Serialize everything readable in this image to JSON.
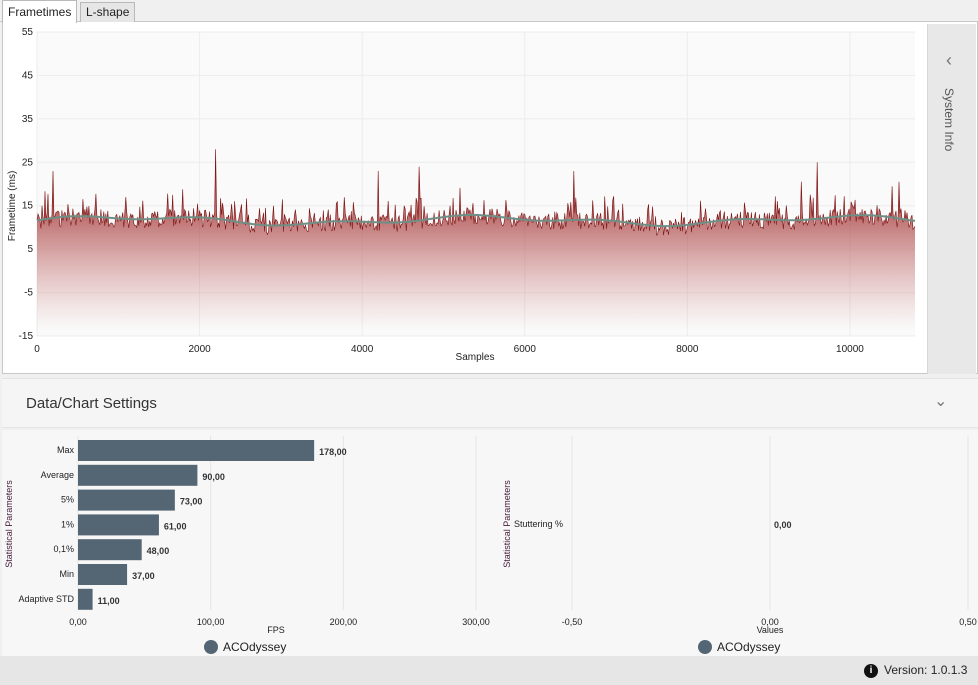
{
  "tabs": [
    {
      "label": "Frametimes",
      "active": true
    },
    {
      "label": "L-shape",
      "active": false
    }
  ],
  "side_panel": {
    "label": "System Info",
    "icon": "chevron-left-icon"
  },
  "settings": {
    "title": "Data/Chart Settings",
    "icon": "chevron-down-icon"
  },
  "footer": {
    "version_label": "Version:",
    "version": "1.0.1.3",
    "icon": "info-icon"
  },
  "colors": {
    "frametime_fill": "#8b1a1a",
    "moving_avg": "#6f8f86",
    "bar": "#546673",
    "legend_dot": "#546673"
  },
  "chart_data": [
    {
      "type": "area",
      "title": "",
      "xlabel": "Samples",
      "ylabel": "Frametime (ms)",
      "xlim": [
        0,
        10800
      ],
      "ylim": [
        -15,
        55
      ],
      "xticks": [
        "0",
        "2000",
        "4000",
        "6000",
        "8000",
        "10000"
      ],
      "yticks": [
        "55",
        "45",
        "35",
        "25",
        "15",
        "5",
        "-5",
        "-15"
      ],
      "grid": true,
      "samples": 10800,
      "baseline_ms": 11,
      "peaks": [
        {
          "x": 200,
          "y": 23
        },
        {
          "x": 2200,
          "y": 28
        },
        {
          "x": 4200,
          "y": 23
        },
        {
          "x": 4700,
          "y": 24
        },
        {
          "x": 6600,
          "y": 23
        },
        {
          "x": 9400,
          "y": 20.5
        },
        {
          "x": 9600,
          "y": 25
        },
        {
          "x": 10600,
          "y": 20.5
        }
      ],
      "series": [
        {
          "name": "",
          "kind": "frametimes"
        },
        {
          "name": "",
          "kind": "moving-average"
        }
      ]
    },
    {
      "type": "bar",
      "orientation": "horizontal",
      "ylabel": "Statistical Parameters",
      "xlabel": "FPS",
      "categories": [
        "Max",
        "Average",
        "5%",
        "1%",
        "0,1%",
        "Min",
        "Adaptive STD"
      ],
      "values": [
        178,
        90,
        73,
        61,
        48,
        37,
        11
      ],
      "value_labels": [
        "178,00",
        "90,00",
        "73,00",
        "61,00",
        "48,00",
        "37,00",
        "11,00"
      ],
      "xlim": [
        0,
        300
      ],
      "xticks": [
        "0,00",
        "100,00",
        "200,00",
        "300,00"
      ],
      "legend": [
        "ACOdyssey"
      ]
    },
    {
      "type": "bar",
      "orientation": "horizontal",
      "ylabel": "Statistical Parameters",
      "xlabel": "Values",
      "categories": [
        "Stuttering %"
      ],
      "values": [
        0
      ],
      "value_labels": [
        "0,00"
      ],
      "xlim": [
        -0.5,
        0.5
      ],
      "xticks": [
        "-0,50",
        "0,00",
        "0,50"
      ],
      "legend": [
        "ACOdyssey"
      ]
    }
  ]
}
